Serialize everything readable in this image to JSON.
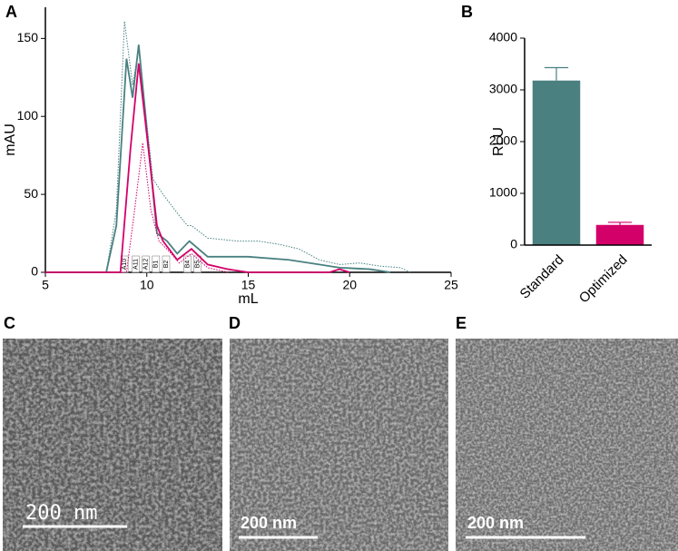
{
  "panel_labels": [
    "A",
    "B",
    "C",
    "D",
    "E"
  ],
  "chart_data": [
    {
      "type": "line",
      "xlabel": "mL",
      "ylabel": "mAU",
      "xlim": [
        5,
        25
      ],
      "ylim": [
        0,
        170
      ],
      "xticks": [
        5,
        10,
        15,
        20,
        25
      ],
      "yticks": [
        0,
        50,
        100,
        150
      ],
      "series": [
        {
          "color": "#4a8080",
          "style": "dotted",
          "x": [
            5,
            8,
            8.5,
            8.9,
            9.3,
            9.6,
            10.3,
            10.8,
            11.5,
            12,
            12.2,
            13,
            14.5,
            15.5,
            16.5,
            17.5,
            18.5,
            19.5,
            20.5,
            21.5,
            22.5,
            23
          ],
          "values": [
            0,
            0,
            40,
            161,
            120,
            143,
            60,
            50,
            38,
            30,
            30,
            22,
            20,
            20,
            18,
            15,
            8,
            5,
            6,
            4,
            3,
            0
          ]
        },
        {
          "color": "#4a8080",
          "style": "solid",
          "x": [
            5,
            8,
            8.5,
            9.0,
            9.3,
            9.6,
            10.5,
            11,
            11.5,
            12.1,
            13,
            15,
            17,
            18.5,
            19.5,
            21,
            22
          ],
          "values": [
            0,
            0,
            30,
            137,
            112,
            146,
            25,
            20,
            12,
            20,
            10,
            10,
            8,
            5,
            3,
            2,
            0
          ]
        },
        {
          "color": "#d4006a",
          "style": "solid",
          "x": [
            5,
            8.7,
            9.2,
            9.6,
            9.9,
            10.5,
            10.8,
            11.5,
            12.2,
            13,
            14,
            15,
            19,
            19.5,
            20
          ],
          "values": [
            0,
            0,
            80,
            134,
            100,
            30,
            20,
            8,
            15,
            5,
            2,
            0,
            0,
            2,
            0
          ]
        },
        {
          "color": "#d4006a",
          "style": "dotted",
          "x": [
            5,
            9,
            9.4,
            9.8,
            10.2,
            10.6,
            11.2,
            11.6,
            12.2,
            13,
            14
          ],
          "values": [
            0,
            0,
            40,
            83,
            40,
            20,
            12,
            6,
            12,
            3,
            0
          ]
        }
      ],
      "fractions": [
        {
          "label": "A10",
          "x": 8.9
        },
        {
          "label": "A11",
          "x": 9.45
        },
        {
          "label": "A12",
          "x": 9.95
        },
        {
          "label": "B1",
          "x": 10.45
        },
        {
          "label": "B2",
          "x": 10.95
        },
        {
          "label": "B4",
          "x": 12
        },
        {
          "label": "B5",
          "x": 12.5
        }
      ]
    },
    {
      "type": "bar",
      "ylabel": "RLU",
      "categories": [
        "Standard",
        "Optimized"
      ],
      "values": [
        3180,
        390
      ],
      "errors": [
        250,
        50
      ],
      "colors": [
        "#4a8080",
        "#d4006a"
      ],
      "ylim": [
        0,
        4000
      ],
      "yticks": [
        0,
        1000,
        2000,
        3000,
        4000
      ]
    }
  ],
  "micrographs": [
    {
      "scale_label": "200 nm"
    },
    {
      "scale_label": "200 nm"
    },
    {
      "scale_label": "200 nm"
    }
  ]
}
